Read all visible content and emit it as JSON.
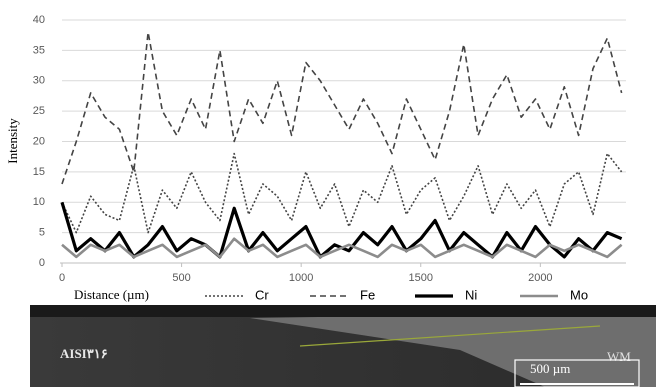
{
  "chart_data": {
    "type": "line",
    "y_label": "Intensity",
    "x_label": "Distance (µm)",
    "x": [
      0,
      60,
      120,
      180,
      240,
      300,
      360,
      420,
      480,
      540,
      600,
      660,
      720,
      780,
      840,
      900,
      960,
      1020,
      1080,
      1140,
      1200,
      1260,
      1320,
      1380,
      1440,
      1500,
      1560,
      1620,
      1680,
      1740,
      1800,
      1860,
      1920,
      1980,
      2040,
      2100,
      2160,
      2220,
      2280,
      2340
    ],
    "series": [
      {
        "name": "Cr",
        "color": "#444444",
        "dash": "dotted",
        "width": 1.6,
        "values": [
          10,
          5,
          11,
          8,
          7,
          16,
          5,
          12,
          9,
          15,
          10,
          7,
          18,
          8,
          13,
          11,
          7,
          15,
          9,
          13,
          6,
          12,
          10,
          16,
          8,
          12,
          14,
          7,
          11,
          16,
          8,
          13,
          9,
          12,
          6,
          13,
          15,
          8,
          18,
          15
        ]
      },
      {
        "name": "Fe",
        "color": "#444444",
        "dash": "dashed",
        "width": 1.6,
        "values": [
          13,
          20,
          28,
          24,
          22,
          15,
          38,
          25,
          21,
          27,
          22,
          35,
          20,
          27,
          23,
          30,
          21,
          33,
          30,
          26,
          22,
          27,
          23,
          18,
          27,
          22,
          17,
          25,
          36,
          21,
          27,
          31,
          24,
          27,
          22,
          29,
          21,
          32,
          37,
          28
        ]
      },
      {
        "name": "Ni",
        "color": "#000000",
        "dash": "solid",
        "width": 3.2,
        "values": [
          10,
          2,
          4,
          2,
          5,
          1,
          3,
          6,
          2,
          4,
          3,
          1,
          9,
          2,
          5,
          2,
          4,
          6,
          1,
          3,
          2,
          5,
          3,
          6,
          2,
          4,
          7,
          2,
          5,
          3,
          1,
          5,
          2,
          6,
          3,
          1,
          4,
          2,
          5,
          4
        ]
      },
      {
        "name": "Mo",
        "color": "#8c8c8c",
        "dash": "solid",
        "width": 2.6,
        "values": [
          3,
          1,
          3,
          2,
          3,
          1,
          2,
          3,
          1,
          2,
          3,
          1,
          4,
          2,
          3,
          1,
          2,
          3,
          1,
          2,
          3,
          2,
          1,
          3,
          2,
          3,
          1,
          2,
          3,
          2,
          1,
          3,
          2,
          1,
          3,
          2,
          3,
          2,
          1,
          3
        ]
      }
    ],
    "xlim": [
      0,
      2400
    ],
    "xticks": [
      0,
      500,
      1000,
      1500,
      2000
    ],
    "ylim": [
      0,
      40
    ],
    "yticks": [
      0,
      5,
      10,
      15,
      20,
      25,
      30,
      35,
      40
    ],
    "grid": true,
    "legend": "bottom"
  },
  "micrograph": {
    "base_metal": "AISI۳۱۶",
    "weld_metal": "WM",
    "scale_bar": "500 µm"
  }
}
